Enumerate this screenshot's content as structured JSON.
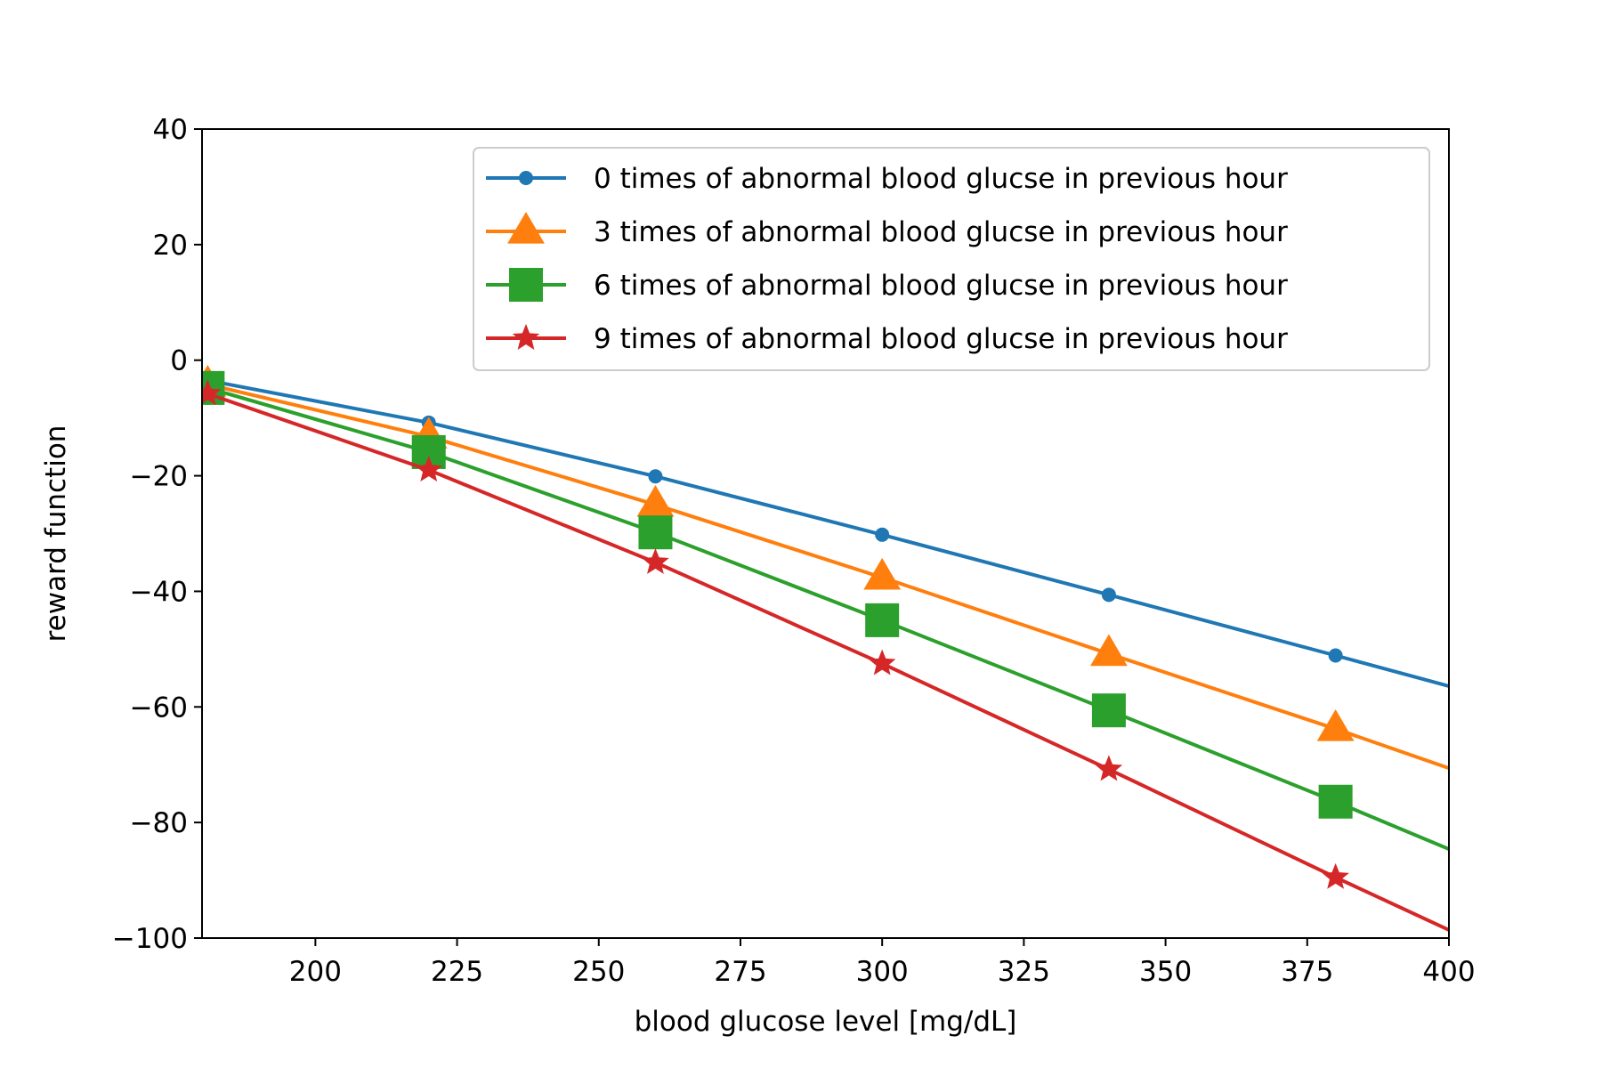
{
  "chart_data": {
    "type": "line",
    "title": "",
    "xlabel": "blood glucose level [mg/dL]",
    "ylabel": "reward function",
    "xlim": [
      180,
      400
    ],
    "ylim": [
      -100,
      40
    ],
    "xticks": [
      200,
      225,
      250,
      275,
      300,
      325,
      350,
      375,
      400
    ],
    "xtick_labels": [
      "200",
      "225",
      "250",
      "275",
      "300",
      "325",
      "350",
      "375",
      "400"
    ],
    "yticks": [
      40,
      20,
      0,
      -20,
      -40,
      -60,
      -80,
      -100
    ],
    "ytick_labels": [
      "40",
      "20",
      "0",
      "−20",
      "−40",
      "−60",
      "−80",
      "−100"
    ],
    "grid": false,
    "legend_position": "top-right",
    "x": [
      181,
      220,
      260,
      300,
      340,
      380,
      400
    ],
    "series": [
      {
        "name": "0 times of abnormal blood glucse in previous hour",
        "color": "#1f77b4",
        "marker": "circle",
        "values": [
          -3.5,
          -10.8,
          -20.1,
          -30.2,
          -40.6,
          -51.1,
          -56.4
        ]
      },
      {
        "name": "3 times of abnormal blood glucse in previous hour",
        "color": "#ff7f0e",
        "marker": "triangle",
        "values": [
          -4.2,
          -13.2,
          -25.0,
          -37.6,
          -50.8,
          -63.8,
          -70.6
        ]
      },
      {
        "name": "6 times of abnormal blood glucse in previous hour",
        "color": "#2ca02c",
        "marker": "square",
        "values": [
          -4.8,
          -15.9,
          -29.8,
          -45.0,
          -60.6,
          -76.4,
          -84.6
        ]
      },
      {
        "name": "9 times of abnormal blood glucse in previous hour",
        "color": "#d62728",
        "marker": "star",
        "values": [
          -5.8,
          -19.0,
          -35.0,
          -52.5,
          -70.8,
          -89.5,
          -98.6
        ]
      }
    ]
  }
}
